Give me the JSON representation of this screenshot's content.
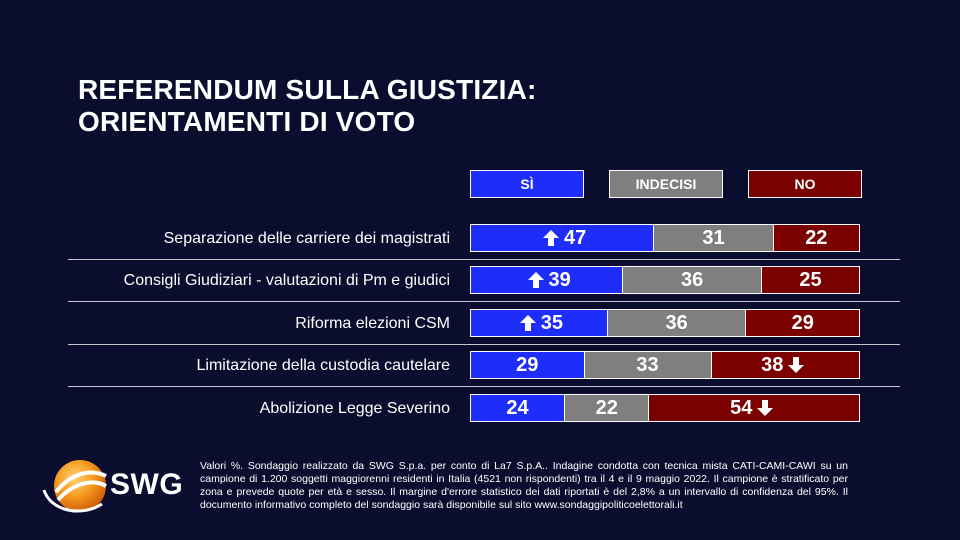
{
  "header": {
    "title_line1": "REFERENDUM SULLA GIUSTIZIA:",
    "title_line2": "ORIENTAMENTI DI VOTO"
  },
  "colors": {
    "si": "#1f2dfb",
    "indecisi": "#7f7f7f",
    "no": "#7b0000",
    "background": "#0b0d2e"
  },
  "chart_data": {
    "type": "bar",
    "stacked": true,
    "orientation": "horizontal",
    "title": "REFERENDUM SULLA GIUSTIZIA: ORIENTAMENTI DI VOTO",
    "legend": [
      "SÌ",
      "INDECISI",
      "NO"
    ],
    "categories": [
      "Separazione delle carriere dei magistrati",
      "Consigli Giudiziari - valutazioni di Pm e giudici",
      "Riforma elezioni CSM",
      "Limitazione della custodia cautelare",
      "Abolizione Legge Severino"
    ],
    "series": [
      {
        "name": "SÌ",
        "values": [
          47,
          39,
          35,
          29,
          24
        ]
      },
      {
        "name": "INDECISI",
        "values": [
          31,
          36,
          36,
          33,
          22
        ]
      },
      {
        "name": "NO",
        "values": [
          22,
          25,
          29,
          38,
          54
        ]
      }
    ],
    "arrows": [
      {
        "row": 0,
        "series": "SÌ",
        "direction": "up"
      },
      {
        "row": 1,
        "series": "SÌ",
        "direction": "up"
      },
      {
        "row": 2,
        "series": "SÌ",
        "direction": "up"
      },
      {
        "row": 3,
        "series": "NO",
        "direction": "down"
      },
      {
        "row": 4,
        "series": "NO",
        "direction": "down"
      }
    ],
    "unit": "%"
  },
  "logo": {
    "text": "SWG"
  },
  "footnote": "Valori %. Sondaggio realizzato da SWG S.p.a. per conto di La7 S.p.A.. Indagine condotta con tecnica mista CATI-CAMI-CAWI su un campione di 1.200 soggetti maggiorenni residenti in Italia (4521 non rispondenti) tra il 4 e il 9 maggio 2022. Il campione è stratificato per zona e prevede quote per età e sesso. Il margine d'errore statistico dei dati riportati è del 2,8% a un intervallo di confidenza del 95%. Il documento informativo completo del sondaggio sarà disponibile sul sito www.sondaggipoliticoelettorali.it"
}
